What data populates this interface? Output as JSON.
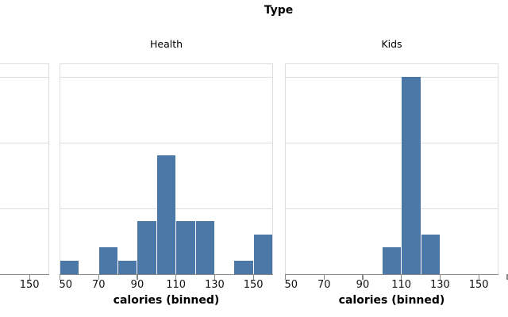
{
  "chart_data": {
    "type": "bar",
    "chart_kind": "faceted-histogram",
    "title": "Type",
    "xlabel": "calories (binned)",
    "ylabel": "",
    "x_domain": [
      50,
      160
    ],
    "x_ticks": [
      50,
      70,
      90,
      110,
      130,
      150
    ],
    "bin_size": 10,
    "y_domain": [
      0,
      16
    ],
    "y_gridline_values": [
      5,
      10,
      15
    ],
    "grid": true,
    "legend": false,
    "facets": [
      {
        "label": "Health",
        "bins": [
          {
            "bin_start": 50,
            "bin_end": 60,
            "count": 1
          },
          {
            "bin_start": 70,
            "bin_end": 80,
            "count": 2
          },
          {
            "bin_start": 80,
            "bin_end": 90,
            "count": 1
          },
          {
            "bin_start": 90,
            "bin_end": 100,
            "count": 4
          },
          {
            "bin_start": 100,
            "bin_end": 110,
            "count": 9
          },
          {
            "bin_start": 110,
            "bin_end": 120,
            "count": 4
          },
          {
            "bin_start": 120,
            "bin_end": 130,
            "count": 4
          },
          {
            "bin_start": 140,
            "bin_end": 150,
            "count": 1
          },
          {
            "bin_start": 150,
            "bin_end": 160,
            "count": 3
          }
        ]
      },
      {
        "label": "Kids",
        "bins": [
          {
            "bin_start": 100,
            "bin_end": 110,
            "count": 2
          },
          {
            "bin_start": 110,
            "bin_end": 120,
            "count": 15
          },
          {
            "bin_start": 120,
            "bin_end": 130,
            "count": 3
          }
        ]
      }
    ],
    "cropped_left_facet": {
      "visible": true,
      "visible_x_tick_labels": [
        "150"
      ],
      "bins_visible": []
    },
    "cropped_right_facet": {
      "visible": true,
      "axis_tick_fragment": true
    },
    "colors": {
      "bar": "#4c78a8",
      "grid": "#dddddd",
      "panel_border": "#dddddd",
      "axis": "#888888",
      "text": "#000000"
    }
  }
}
